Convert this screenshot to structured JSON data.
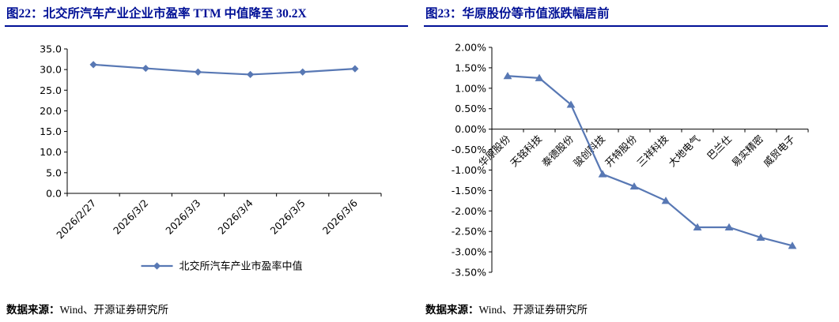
{
  "colors": {
    "title_navy": "#001096",
    "series_blue": "#5878B4",
    "axis_black": "#000000"
  },
  "chart_data": [
    {
      "type": "line",
      "title": "图22：北交所汽车产业企业市盈率 TTM 中值降至 30.2X",
      "categories": [
        "2026/2/27",
        "2026/3/2",
        "2026/3/3",
        "2026/3/4",
        "2026/3/5",
        "2026/3/6"
      ],
      "series": [
        {
          "name": "北交所汽车产业市盈率中值",
          "values": [
            31.2,
            30.3,
            29.4,
            28.8,
            29.4,
            30.2
          ]
        }
      ],
      "ylim": [
        0,
        35
      ],
      "ytick_step": 5,
      "ytick_format": "fixed1",
      "x_axis_at": 0,
      "grid": false,
      "legend_position": "bottom",
      "marker": "diamond",
      "source_label": "数据来源：",
      "source_value": "Wind、开源证券研究所"
    },
    {
      "type": "line",
      "title": "图23：华原股份等市值涨跌幅居前",
      "categories": [
        "华原股份",
        "天铭科技",
        "泰德股份",
        "骏创科技",
        "开特股份",
        "三祥科技",
        "大地电气",
        "巴兰仕",
        "易实精密",
        "威贸电子"
      ],
      "series": [
        {
          "name": "",
          "values": [
            1.3,
            1.25,
            0.6,
            -1.1,
            -1.4,
            -1.75,
            -2.4,
            -2.4,
            -2.65,
            -2.85
          ]
        }
      ],
      "ylim": [
        -3.5,
        2.0
      ],
      "ytick_step": 0.5,
      "ytick_format": "percent2",
      "x_axis_at": 0,
      "grid": false,
      "legend_position": "none",
      "marker": "triangle",
      "source_label": "数据来源：",
      "source_value": "Wind、开源证券研究所"
    }
  ]
}
